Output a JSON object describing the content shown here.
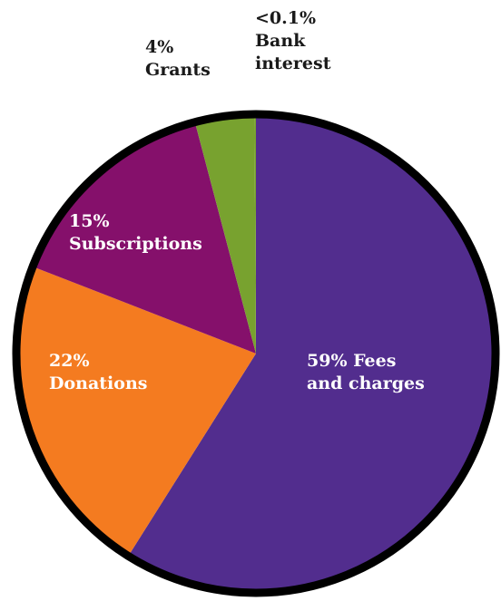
{
  "chart_data": {
    "type": "pie",
    "title": "",
    "slices": [
      {
        "pct_label": "59% Fees",
        "name_label": "and charges",
        "value": 59,
        "color": "#522d8e"
      },
      {
        "pct_label": "22%",
        "name_label": "Donations",
        "value": 22,
        "color": "#f47b20"
      },
      {
        "pct_label": "15%",
        "name_label": "Subscriptions",
        "value": 15,
        "color": "#85106b"
      },
      {
        "pct_label": "4%",
        "name_label": "Grants",
        "value": 4,
        "color": "#78a22f"
      },
      {
        "pct_label": "<0.1%",
        "name_label": "Bank",
        "name_label_2": "interest",
        "value": 0.1,
        "color": "#78a22f"
      }
    ],
    "outline_color": "#000000"
  }
}
